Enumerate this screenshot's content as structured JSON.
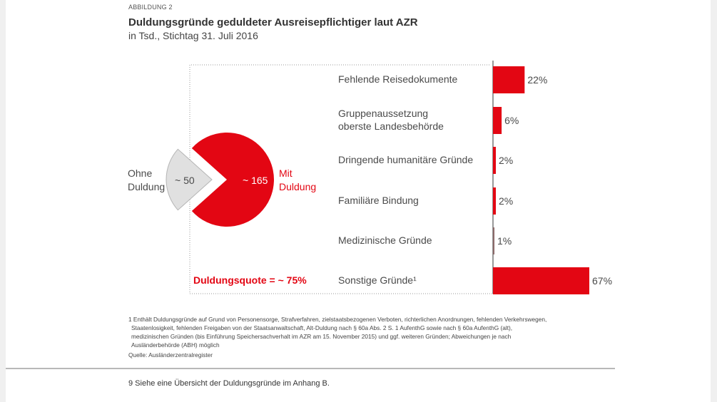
{
  "header": {
    "caption": "ABBILDUNG 2",
    "title": "Duldungsgründe geduldeter Ausreisepflichtiger laut AZR",
    "subtitle": "in Tsd., Stichtag 31. Juli 2016"
  },
  "chart_data": [
    {
      "type": "pie",
      "unit": "Tsd.",
      "slices": [
        {
          "label_lines": [
            "Ohne",
            "Duldung"
          ],
          "value": 50,
          "value_label": "~ 50",
          "color": "#e0e0e0"
        },
        {
          "label_lines": [
            "Mit",
            "Duldung"
          ],
          "value": 165,
          "value_label": "~ 165",
          "color": "#e30613"
        }
      ],
      "annotation": "Duldungsquote = ~ 75%"
    },
    {
      "type": "bar",
      "orientation": "horizontal",
      "unit": "%",
      "categories": [
        [
          "Fehlende Reisedokumente"
        ],
        [
          "Gruppenaussetzung",
          "oberste Landesbehörde"
        ],
        [
          "Dringende humanitäre Gründe"
        ],
        [
          "Familiäre Bindung"
        ],
        [
          "Medizinische Gründe"
        ],
        [
          "Sonstige Gründe¹"
        ]
      ],
      "values": [
        22,
        6,
        2,
        2,
        1,
        67
      ],
      "value_labels": [
        "22%",
        "6%",
        "2%",
        "2%",
        "1%",
        "67%"
      ],
      "bar_colors": [
        "#e30613",
        "#e30613",
        "#e30613",
        "#e30613",
        "#8c6a6a",
        "#e30613"
      ]
    }
  ],
  "footnote": {
    "lines": [
      "1 Enthält Duldungsgründe auf Grund von Personensorge, Strafverfahren, zielstaatsbezogenen Verboten, richterlichen Anordnungen, fehlenden Verkehrswegen,",
      "Staatenlosigkeit, fehlenden Freigaben von der Staatsanwaltschaft, Alt-Duldung nach § 60a Abs. 2 S. 1 AufenthG sowie nach § 60a AufenthG (alt),",
      "medizinischen Gründen (bis Einführung Speichersachverhalt im AZR am 15. November 2015) und ggf. weiteren Gründen; Abweichungen je nach",
      "Ausländerbehörde (ABH) möglich"
    ],
    "source": "Quelle: Ausländerzentralregister"
  },
  "bottom_note": "9 Siehe eine Übersicht der Duldungsgründe im Anhang B.",
  "colors": {
    "accent_red": "#e30613",
    "grey_slice": "#e0e0e0",
    "text": "#4a4a4a"
  }
}
